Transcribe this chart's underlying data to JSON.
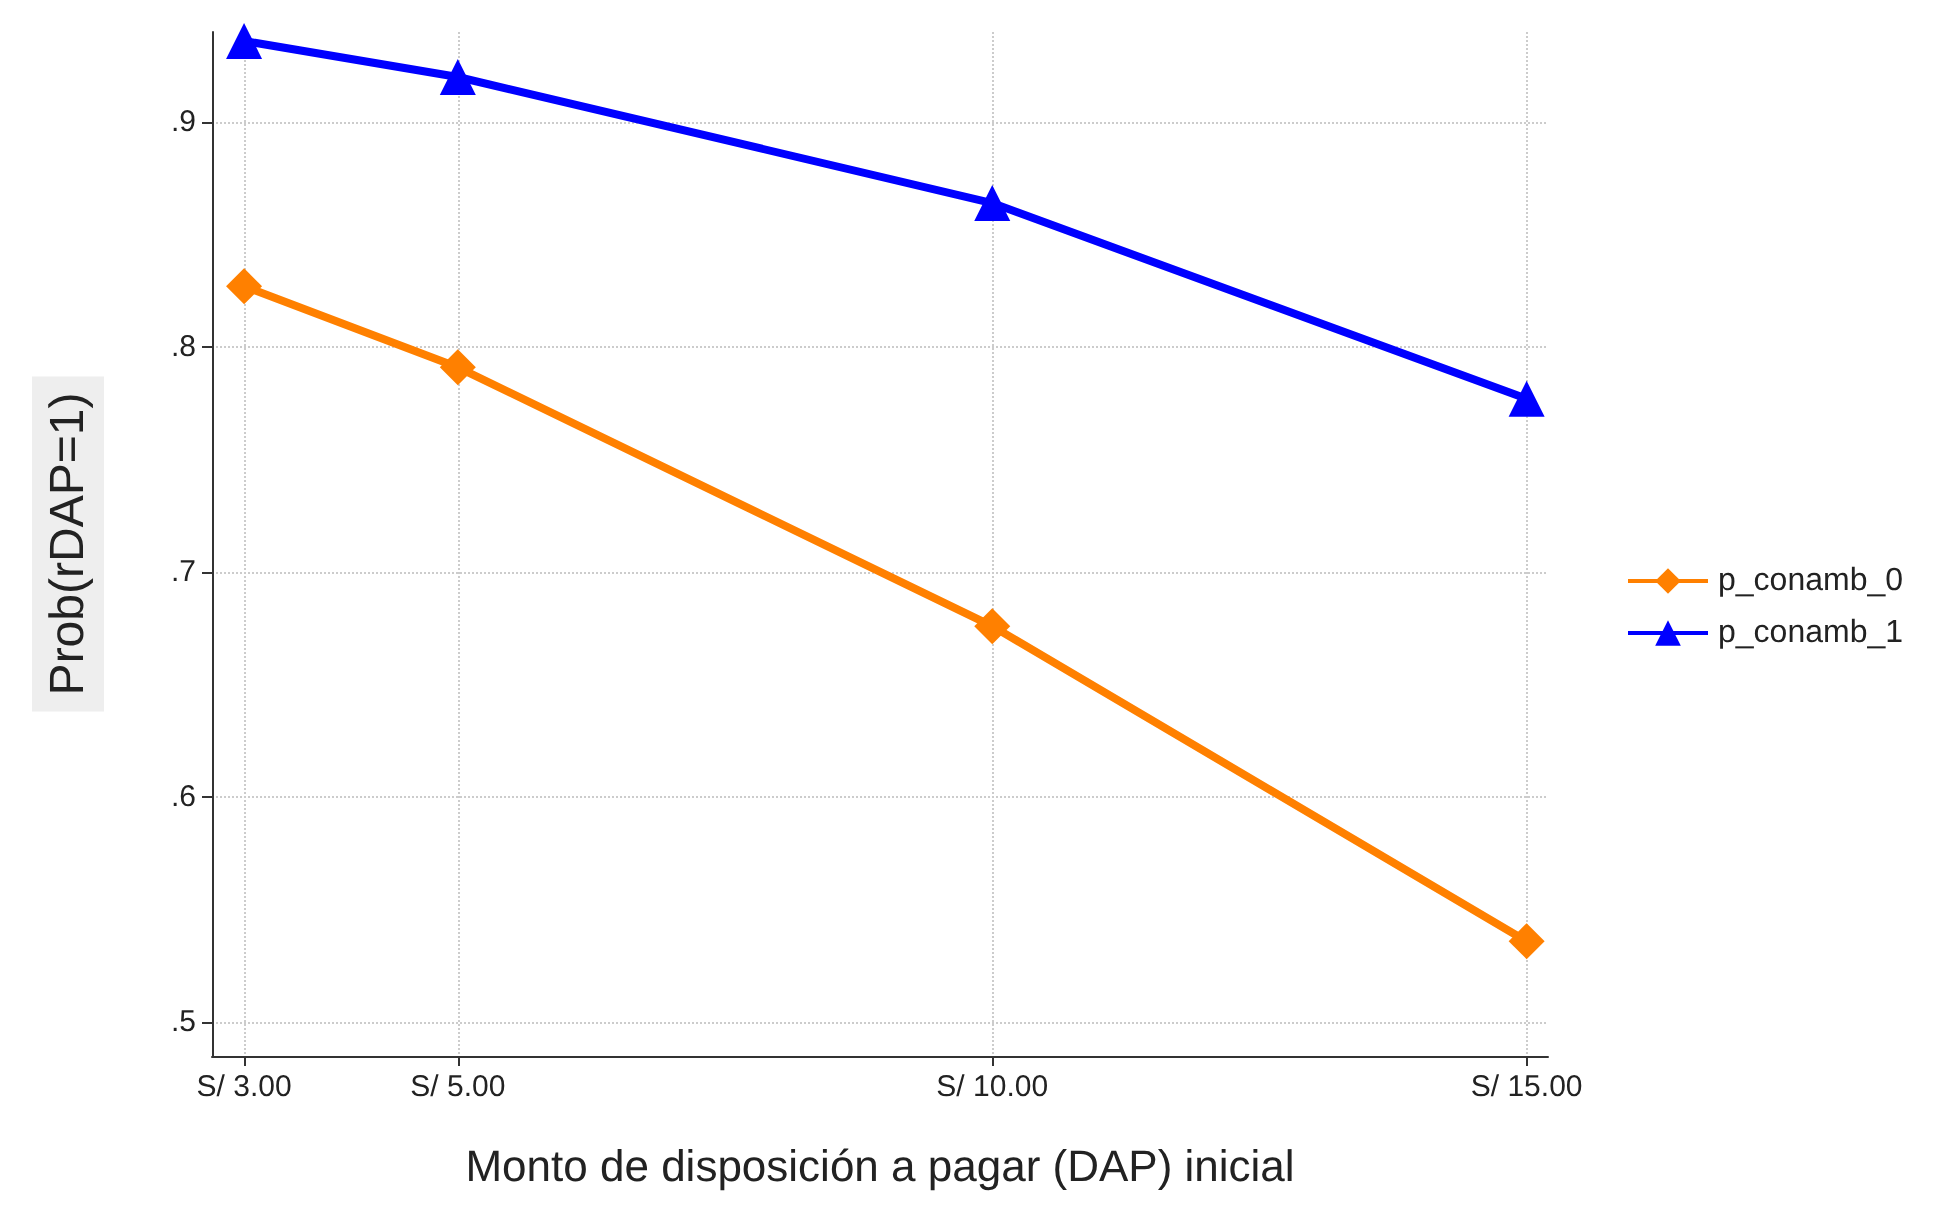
{
  "chart_data": {
    "type": "line",
    "xlabel": "Monto de disposición a pagar (DAP) inicial",
    "ylabel": "Prob(rDAP=1)",
    "x": [
      3,
      5,
      10,
      15
    ],
    "series": [
      {
        "name": "p_conamb_0",
        "color": "#ff8000",
        "marker": "diamond",
        "values": [
          0.827,
          0.791,
          0.676,
          0.536
        ]
      },
      {
        "name": "p_conamb_1",
        "color": "#0000ff",
        "marker": "triangle",
        "values": [
          0.936,
          0.92,
          0.864,
          0.777
        ]
      }
    ],
    "xlim": [
      2.7,
      15.2
    ],
    "xticks": [
      {
        "value": 3,
        "label": "S/ 3.00"
      },
      {
        "value": 5,
        "label": "S/ 5.00"
      },
      {
        "value": 10,
        "label": "S/ 10.00"
      },
      {
        "value": 15,
        "label": "S/ 15.00"
      }
    ],
    "ylim": [
      0.485,
      0.94
    ],
    "yticks": [
      {
        "value": 0.5,
        "label": ".5"
      },
      {
        "value": 0.6,
        "label": ".6"
      },
      {
        "value": 0.7,
        "label": ".7"
      },
      {
        "value": 0.8,
        "label": ".8"
      },
      {
        "value": 0.9,
        "label": ".9"
      }
    ],
    "grid": true,
    "legend": "right",
    "line_style": "solid"
  }
}
